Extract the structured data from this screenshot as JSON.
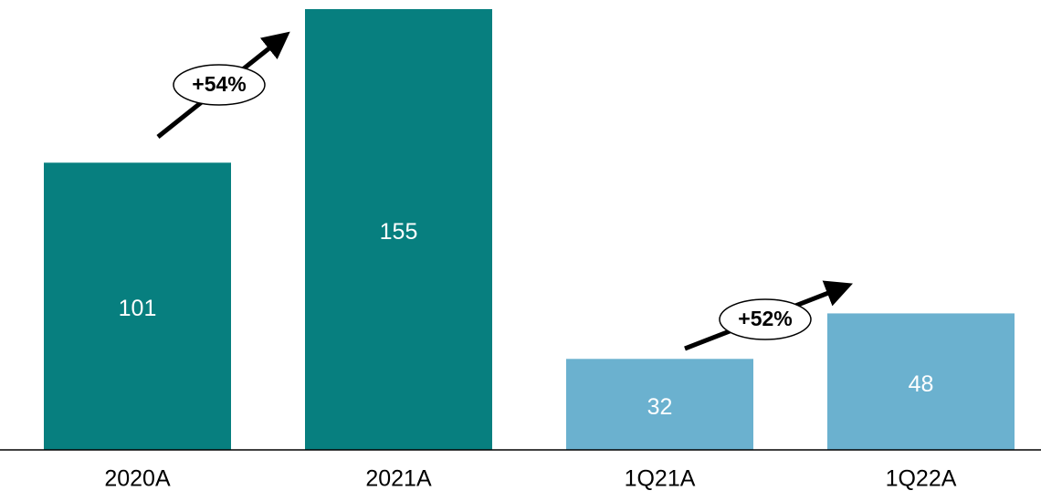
{
  "chart_data": {
    "type": "bar",
    "categories": [
      "2020A",
      "2021A",
      "1Q21A",
      "1Q22A"
    ],
    "values": [
      101,
      155,
      32,
      48
    ],
    "colors": [
      "#077f7f",
      "#077f7f",
      "#6bb1cf",
      "#6bb1cf"
    ],
    "annotations": [
      "+54%",
      "+52%"
    ]
  }
}
